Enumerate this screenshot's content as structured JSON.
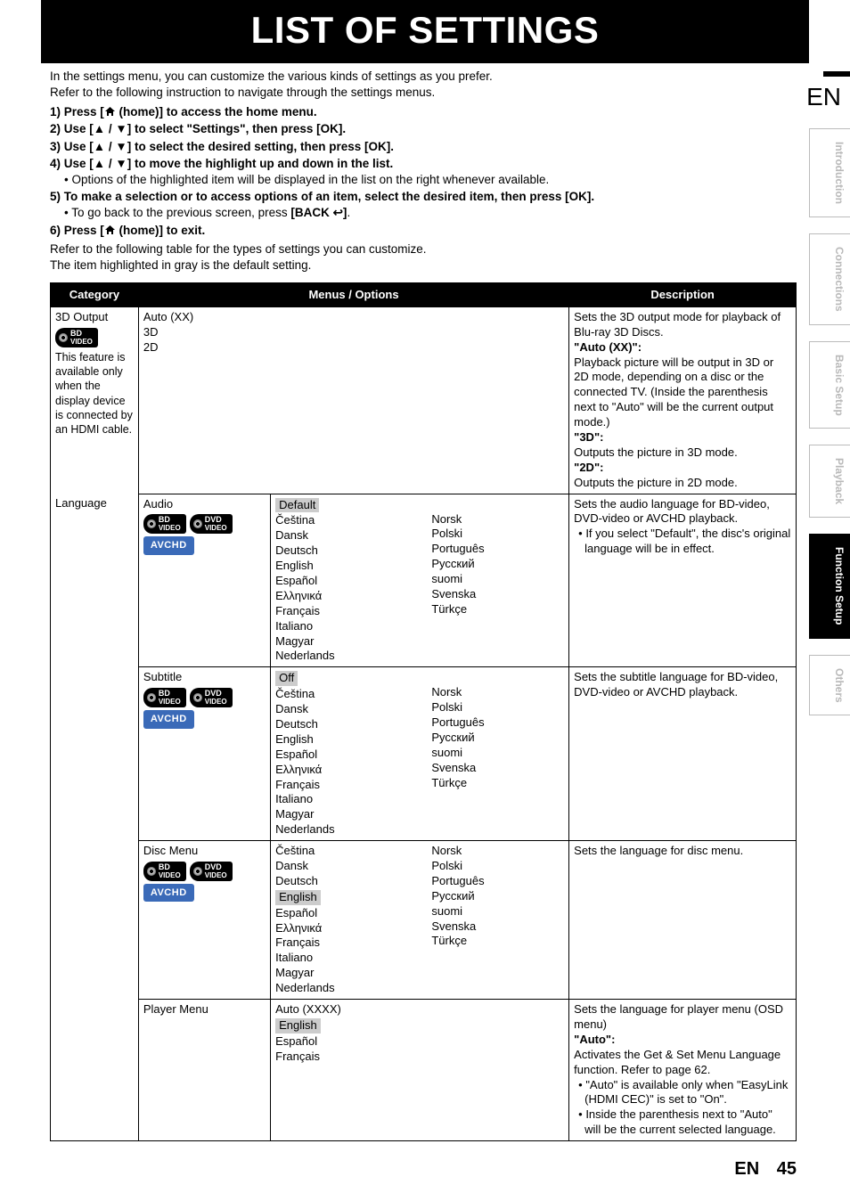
{
  "title": "LIST OF SETTINGS",
  "lang_label": "EN",
  "page_number": "45",
  "intro": {
    "l1": "In the settings menu, you can customize the various kinds of settings as you prefer.",
    "l2": "Refer to the following instruction to navigate through the settings menus."
  },
  "steps": {
    "s1a": "1)  Press [",
    "s1b": " (home)] to access the home menu.",
    "s2": "2)  Use [▲ / ▼] to select \"Settings\", then press [OK].",
    "s3": "3)  Use [▲ / ▼] to select the desired setting, then press [OK].",
    "s4": "4)  Use [▲ / ▼] to move the highlight up and down in the list.",
    "s4_sub": "• Options of the highlighted item will be displayed in the list on the right whenever available.",
    "s5": "5)  To make a selection or to access options of an item, select the desired item, then press [OK].",
    "s5_sub_a": "• To go back to the previous screen, press ",
    "s5_sub_b": "[BACK ↩]",
    "s5_sub_c": ".",
    "s6a": "6)  Press [",
    "s6b": " (home)] to exit."
  },
  "after": {
    "l1": "Refer to the following table for the types of settings you can customize.",
    "l2": "The item highlighted in gray is the default setting."
  },
  "headers": {
    "category": "Category",
    "menus_options": "Menus / Options",
    "description": "Description"
  },
  "rows": {
    "r1": {
      "category_title": "3D Output",
      "category_note": "This feature is available only when the display device is connected by an HDMI cable.",
      "opt_col1": [
        "Auto (XX)",
        "3D",
        "2D"
      ],
      "desc_html": "Sets the 3D output mode for playback of Blu-ray 3D Discs.|<b>\"Auto (XX)\":</b>|Playback picture will be output in 3D or 2D mode, depending on a disc or the connected TV. (Inside the parenthesis next to \"Auto\" will be the current output mode.)|<b>\"3D\":</b>|Outputs the picture in 3D mode.|<b>\"2D\":</b>|Outputs the picture in 2D mode."
    },
    "r2": {
      "category_title": "Language",
      "sub": {
        "audio": {
          "label": "Audio",
          "default": "Default",
          "col_a": [
            "Čeština",
            "Dansk",
            "Deutsch",
            "English",
            "Español",
            "Ελληνικά",
            "Français",
            "Italiano",
            "Magyar",
            "Nederlands"
          ],
          "col_b": [
            "Norsk",
            "Polski",
            "Português",
            "Русский",
            "suomi",
            "Svenska",
            "Türkçe"
          ],
          "desc": "Sets the audio language for BD-video, DVD-video or AVCHD playback.|• If you select \"Default\", the disc's original language will be in effect."
        },
        "subtitle": {
          "label": "Subtitle",
          "default": "Off",
          "col_a": [
            "Čeština",
            "Dansk",
            "Deutsch",
            "English",
            "Español",
            "Ελληνικά",
            "Français",
            "Italiano",
            "Magyar",
            "Nederlands"
          ],
          "col_b": [
            "Norsk",
            "Polski",
            "Português",
            "Русский",
            "suomi",
            "Svenska",
            "Türkçe"
          ],
          "desc": "Sets the subtitle language for BD-video, DVD-video or AVCHD playback."
        },
        "discmenu": {
          "label": "Disc Menu",
          "default": "English",
          "col_a": [
            "Čeština",
            "Dansk",
            "Deutsch",
            "English",
            "Español",
            "Ελληνικά",
            "Français",
            "Italiano",
            "Magyar",
            "Nederlands"
          ],
          "col_b": [
            "Norsk",
            "Polski",
            "Português",
            "Русский",
            "suomi",
            "Svenska",
            "Türkçe"
          ],
          "desc": "Sets the language for disc menu."
        },
        "playermenu": {
          "label": "Player Menu",
          "default": "English",
          "col_a": [
            "Auto (XXXX)",
            "English",
            "Español",
            "Français"
          ],
          "desc": "Sets the language for player menu (OSD menu)|<b>\"Auto\":</b>|Activates the Get & Set Menu Language function. Refer to page 62.|• \"Auto\" is available only when \"EasyLink (HDMI CEC)\" is set to \"On\".|• Inside the parenthesis next to \"Auto\" will be the current selected language."
        }
      }
    }
  },
  "logos": {
    "bd_top": "BD",
    "bd_sub": "VIDEO",
    "dvd_top": "DVD",
    "dvd_sub": "VIDEO",
    "avchd": "AVCHD"
  },
  "tabs": {
    "t1": "Introduction",
    "t2": "Connections",
    "t3": "Basic Setup",
    "t4": "Playback",
    "t5": "Function Setup",
    "t6": "Others"
  }
}
